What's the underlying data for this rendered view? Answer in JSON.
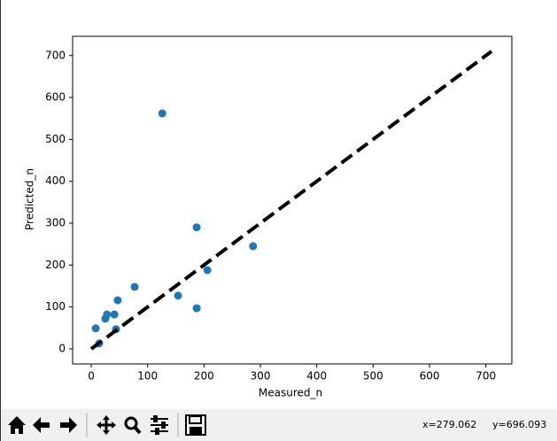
{
  "chart_data": {
    "type": "scatter",
    "x_label": "Measured_n",
    "y_label": "Predicted_n",
    "series": [
      {
        "color": "#1f77b4",
        "x": [
          8,
          14,
          25,
          28,
          41,
          44,
          47,
          77,
          126,
          154,
          187,
          187,
          206,
          287
        ],
        "values": [
          49,
          13,
          72,
          82,
          82,
          47,
          116,
          148,
          562,
          127,
          290,
          97,
          188,
          245
        ]
      }
    ],
    "reference_line": {
      "x": [
        0,
        710
      ],
      "y": [
        0,
        710
      ],
      "color": "#000000",
      "style": "dashed"
    },
    "xlim": [
      -33,
      746
    ],
    "ylim": [
      -36,
      746
    ],
    "xticks": [
      0,
      100,
      200,
      300,
      400,
      500,
      600,
      700
    ],
    "yticks": [
      0,
      100,
      200,
      300,
      400,
      500,
      600,
      700
    ],
    "grid": false
  },
  "status": {
    "x": "x=279.062",
    "y": "y=696.093"
  }
}
